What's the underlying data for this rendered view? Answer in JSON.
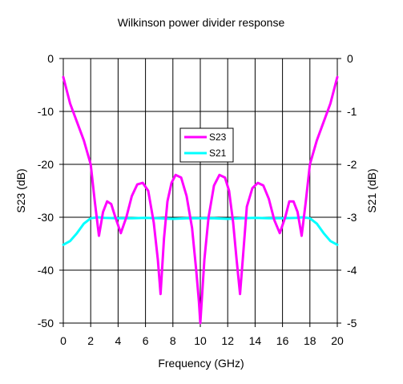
{
  "chart_data": {
    "type": "line",
    "title": "Wilkinson power divider response",
    "xlabel": "Frequency (GHz)",
    "ylabel_left": "S23 (dB)",
    "ylabel_right": "S21 (dB)",
    "xlim": [
      0,
      20
    ],
    "ylim_left": [
      -50,
      0
    ],
    "ylim_right": [
      -5,
      0
    ],
    "xticks": [
      "0",
      "2",
      "4",
      "6",
      "8",
      "10",
      "12",
      "14",
      "16",
      "18",
      "20"
    ],
    "yticks_left": [
      "0",
      "-10",
      "-20",
      "-30",
      "-40",
      "-50"
    ],
    "yticks_right": [
      "0",
      "-1",
      "-2",
      "-3",
      "-4",
      "-5"
    ],
    "grid": true,
    "legend_position": "center",
    "series": [
      {
        "name": "S23",
        "axis": "left",
        "color": "#ff00ff",
        "x": [
          0,
          0.5,
          1.0,
          1.5,
          2.0,
          2.3,
          2.6,
          2.9,
          3.2,
          3.5,
          3.8,
          4.2,
          4.6,
          5.0,
          5.4,
          5.8,
          6.2,
          6.6,
          6.9,
          7.1,
          7.35,
          7.6,
          7.9,
          8.2,
          8.6,
          9.0,
          9.4,
          9.7,
          9.9,
          10.0,
          10.1,
          10.3,
          10.6,
          11.0,
          11.4,
          11.8,
          12.1,
          12.4,
          12.65,
          12.9,
          13.1,
          13.4,
          13.8,
          14.2,
          14.6,
          15.0,
          15.4,
          15.8,
          16.2,
          16.5,
          16.8,
          17.1,
          17.4,
          17.7,
          18.0,
          18.5,
          19.0,
          19.5,
          20.0
        ],
        "y": [
          -3.5,
          -8.5,
          -12,
          -15.5,
          -20,
          -27,
          -33.5,
          -29,
          -27,
          -27.5,
          -30,
          -33,
          -30,
          -26,
          -23.8,
          -23.5,
          -25,
          -31,
          -38,
          -44.5,
          -34,
          -27,
          -23.5,
          -22,
          -22.5,
          -26,
          -32,
          -40,
          -46,
          -50,
          -46,
          -38,
          -30,
          -24,
          -22,
          -22.5,
          -25,
          -31,
          -38,
          -44.5,
          -38,
          -28,
          -24.5,
          -23.5,
          -24,
          -26.5,
          -30.5,
          -33,
          -30,
          -27,
          -27,
          -29,
          -33.5,
          -27,
          -20,
          -15.5,
          -12,
          -8.5,
          -3.5
        ]
      },
      {
        "name": "S21",
        "axis": "right",
        "color": "#00ffff",
        "x": [
          0,
          0.5,
          1.0,
          1.5,
          2.0,
          2.5,
          3.0,
          4.0,
          5.0,
          6.0,
          7.0,
          8.0,
          9.0,
          10.0,
          11.0,
          12.0,
          13.0,
          14.0,
          15.0,
          16.0,
          17.0,
          17.5,
          18.0,
          18.5,
          19.0,
          19.5,
          20.0
        ],
        "y": [
          -3.52,
          -3.45,
          -3.3,
          -3.12,
          -3.02,
          -3.0,
          -3.01,
          -3.02,
          -3.02,
          -3.01,
          -3.02,
          -3.03,
          -3.02,
          -3.02,
          -3.02,
          -3.03,
          -3.02,
          -3.01,
          -3.02,
          -3.02,
          -3.01,
          -3.0,
          -3.02,
          -3.12,
          -3.3,
          -3.45,
          -3.52
        ]
      }
    ]
  }
}
